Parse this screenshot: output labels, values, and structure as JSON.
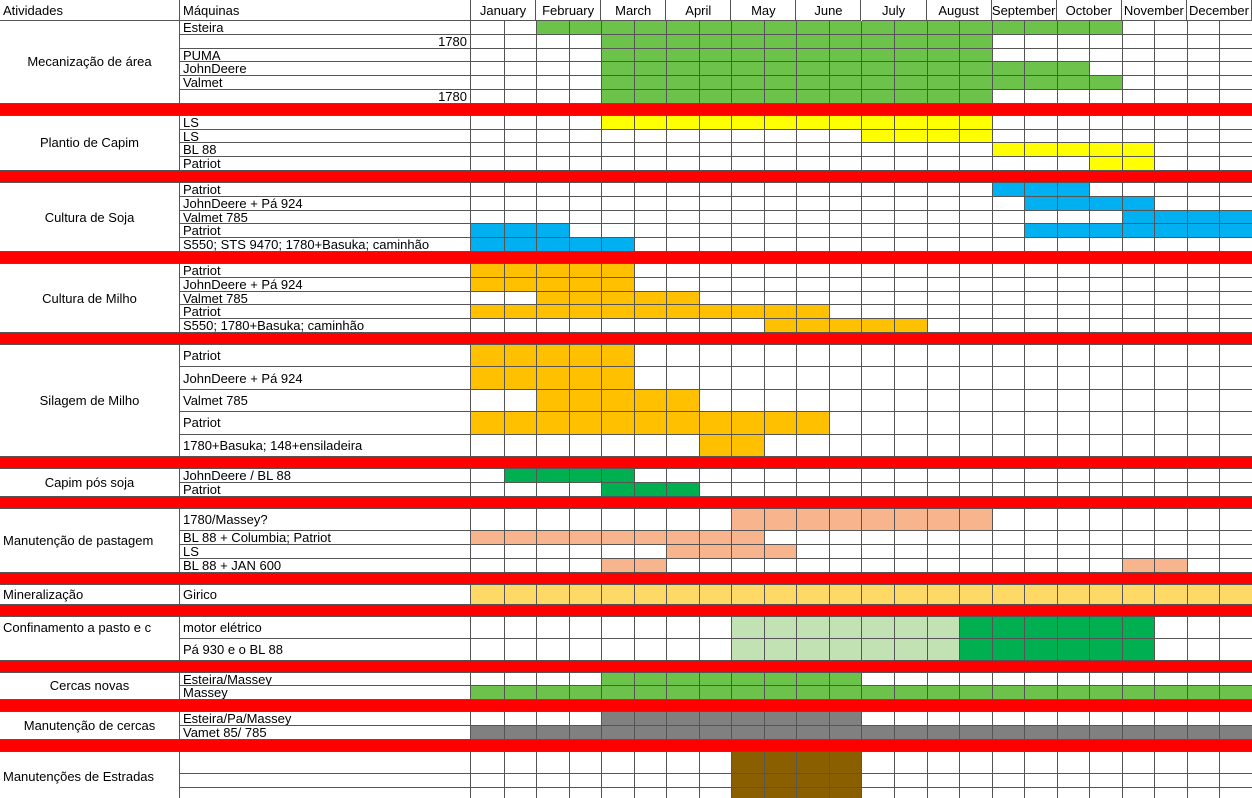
{
  "header": {
    "activities": "Atividades",
    "machines": "Máquinas",
    "months": [
      "January",
      "February",
      "March",
      "April",
      "May",
      "June",
      "July",
      "August",
      "September",
      "October",
      "November",
      "December"
    ]
  },
  "groups": [
    {
      "activity": "Mecanização de área",
      "rows": [
        {
          "machine": "Esteira",
          "color": "#6cc24a",
          "spans": [
            [
              2,
              19
            ]
          ]
        },
        {
          "machine": 1780,
          "color": "#6cc24a",
          "spans": [
            [
              4,
              15
            ]
          ]
        },
        {
          "machine": "PUMA",
          "color": "#6cc24a",
          "spans": [
            [
              4,
              15
            ]
          ]
        },
        {
          "machine": "JohnDeere",
          "color": "#6cc24a",
          "spans": [
            [
              4,
              18
            ]
          ]
        },
        {
          "machine": "Valmet",
          "color": "#6cc24a",
          "spans": [
            [
              4,
              19
            ]
          ]
        },
        {
          "machine": 1780,
          "color": "#6cc24a",
          "spans": [
            [
              4,
              15
            ]
          ]
        }
      ]
    },
    {
      "activity": "Plantio de Capim",
      "rows": [
        {
          "machine": "LS",
          "color": "#ffff00",
          "spans": [
            [
              4,
              15
            ]
          ]
        },
        {
          "machine": "LS",
          "color": "#ffff00",
          "spans": [
            [
              12,
              15
            ]
          ]
        },
        {
          "machine": "BL 88",
          "color": "#ffff00",
          "spans": [
            [
              16,
              20
            ]
          ]
        },
        {
          "machine": "Patriot",
          "color": "#ffff00",
          "spans": [
            [
              19,
              20
            ]
          ]
        }
      ]
    },
    {
      "activity": "Cultura de Soja",
      "rows": [
        {
          "machine": "Patriot",
          "color": "#00b0f0",
          "spans": [
            [
              16,
              18
            ]
          ]
        },
        {
          "machine": "JohnDeere + Pá 924",
          "color": "#00b0f0",
          "spans": [
            [
              17,
              20
            ]
          ]
        },
        {
          "machine": "Valmet 785",
          "color": "#00b0f0",
          "spans": [
            [
              20,
              23
            ]
          ]
        },
        {
          "machine": "Patriot",
          "color": "#00b0f0",
          "spans": [
            [
              0,
              2
            ],
            [
              17,
              23
            ]
          ]
        },
        {
          "machine": "S550; STS 9470; 1780+Basuka; caminhão",
          "color": "#00b0f0",
          "spans": [
            [
              0,
              4
            ]
          ]
        }
      ]
    },
    {
      "activity": "Cultura de Milho",
      "rows": [
        {
          "machine": "Patriot",
          "color": "#ffc000",
          "spans": [
            [
              0,
              4
            ]
          ]
        },
        {
          "machine": "JohnDeere + Pá 924",
          "color": "#ffc000",
          "spans": [
            [
              0,
              4
            ]
          ]
        },
        {
          "machine": "Valmet 785",
          "color": "#ffc000",
          "spans": [
            [
              2,
              6
            ]
          ]
        },
        {
          "machine": "Patriot",
          "color": "#ffc000",
          "spans": [
            [
              0,
              10
            ]
          ]
        },
        {
          "machine": "S550; 1780+Basuka; caminhão",
          "color": "#ffc000",
          "spans": [
            [
              9,
              13
            ]
          ]
        }
      ]
    },
    {
      "activity": "Silagem de Milho",
      "rows": [
        {
          "machine": "Patriot",
          "color": "#ffc000",
          "spans": [
            [
              0,
              4
            ]
          ]
        },
        {
          "machine": "JohnDeere + Pá 924",
          "color": "#ffc000",
          "spans": [
            [
              0,
              4
            ]
          ]
        },
        {
          "machine": "Valmet 785",
          "color": "#ffc000",
          "spans": [
            [
              2,
              6
            ]
          ]
        },
        {
          "machine": "Patriot",
          "color": "#ffc000",
          "spans": [
            [
              0,
              10
            ]
          ]
        },
        {
          "machine": "1780+Basuka; 148+ensiladeira",
          "color": "#ffc000",
          "spans": [
            [
              7,
              8
            ]
          ]
        }
      ]
    },
    {
      "activity": "Capim pós soja",
      "rows": [
        {
          "machine": "JohnDeere / BL 88",
          "color": "#00b050",
          "spans": [
            [
              1,
              4
            ]
          ]
        },
        {
          "machine": "Patriot",
          "color": "#00b050",
          "spans": [
            [
              4,
              6
            ]
          ]
        }
      ]
    },
    {
      "activity": "Manutenção de pastagem",
      "rows": [
        {
          "machine": "1780/Massey?",
          "color": "#f8b58d",
          "spans": [
            [
              8,
              15
            ]
          ]
        },
        {
          "machine": "BL 88 + Columbia; Patriot",
          "color": "#f8b58d",
          "spans": [
            [
              0,
              8
            ]
          ]
        },
        {
          "machine": "LS",
          "color": "#f8b58d",
          "spans": [
            [
              6,
              9
            ]
          ]
        },
        {
          "machine": "BL 88 + JAN 600",
          "color": "#f8b58d",
          "spans": [
            [
              4,
              5
            ],
            [
              20,
              21
            ]
          ]
        }
      ]
    },
    {
      "activity": "Mineralização",
      "rows": [
        {
          "machine": "Girico",
          "color": "#ffd966",
          "spans": [
            [
              0,
              23
            ]
          ]
        }
      ]
    },
    {
      "activity": "Confinamento a pasto e c",
      "rows": [
        {
          "machine": "motor elétrico",
          "color": "#c3e2b3",
          "spans": [
            [
              8,
              14
            ]
          ],
          "color2": "#00b050",
          "spans2": [
            [
              15,
              20
            ]
          ]
        },
        {
          "machine": "Pá 930 e o BL 88",
          "color": "#c3e2b3",
          "spans": [
            [
              8,
              14
            ]
          ],
          "color2": "#00b050",
          "spans2": [
            [
              15,
              20
            ]
          ]
        }
      ]
    },
    {
      "activity": "Cercas novas",
      "rows": [
        {
          "machine": "Esteira/Massey",
          "color": "#6cc24a",
          "spans": [
            [
              4,
              11
            ]
          ]
        },
        {
          "machine": "Massey",
          "color": "#6cc24a",
          "spans": [
            [
              0,
              23
            ]
          ]
        }
      ]
    },
    {
      "activity": "Manutenção de cercas",
      "rows": [
        {
          "machine": "Esteira/Pa/Massey",
          "color": "#808080",
          "spans": [
            [
              4,
              11
            ]
          ]
        },
        {
          "machine": "Vamet 85/ 785",
          "color": "#808080",
          "spans": [
            [
              0,
              23
            ]
          ]
        }
      ]
    },
    {
      "activity": "Manutenções de Estradas",
      "rows": [
        {
          "machine": null,
          "color": "#8a5f00",
          "spans": [
            [
              8,
              11
            ]
          ]
        },
        {
          "machine": null,
          "color": "#8a5f00",
          "spans": [
            [
              8,
              11
            ]
          ]
        },
        {
          "machine": null,
          "color": "#8a5f00",
          "spans": [
            [
              8,
              11
            ]
          ]
        }
      ]
    }
  ]
}
